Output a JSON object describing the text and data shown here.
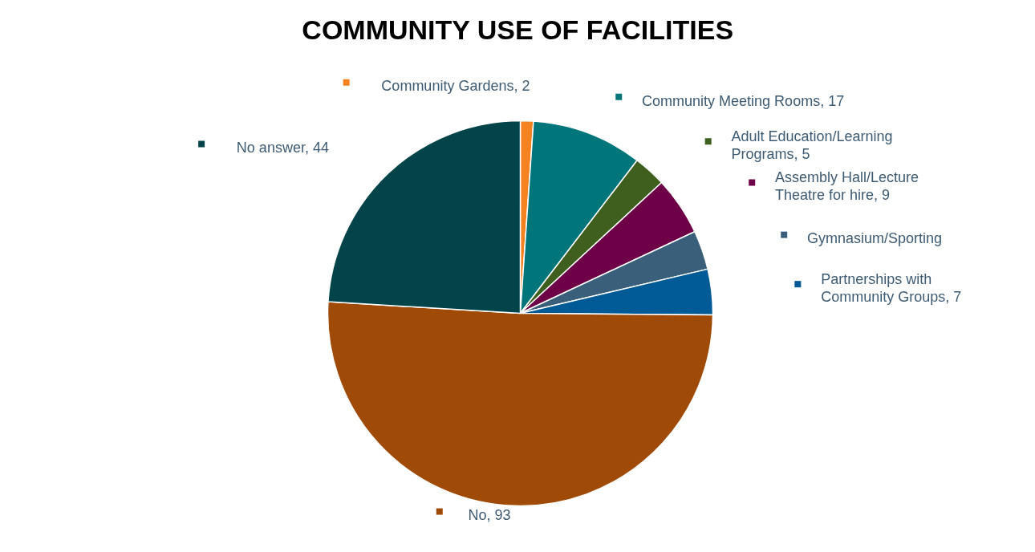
{
  "chart_data": {
    "type": "pie",
    "title": "COMMUNITY USE OF FACILITIES",
    "categories": [
      "Community Gardens",
      "Community Meeting Rooms",
      "Adult Education/Learning Programs",
      "Assembly Hall/Lecture Theatre for hire",
      "Gymnasium/Sporting",
      "Partnerships with Community Groups",
      "No",
      "No answer"
    ],
    "values": [
      2,
      17,
      5,
      9,
      6,
      7,
      93,
      44
    ],
    "legend": "right",
    "value_labels": [
      "2",
      "17",
      "5",
      "9",
      null,
      "7",
      "93",
      "44"
    ],
    "colors": [
      "#f58220",
      "#00757a",
      "#3f5f1e",
      "#6d0046",
      "#3a5f7a",
      "#005a96",
      "#a04a08",
      "#02444a"
    ]
  }
}
